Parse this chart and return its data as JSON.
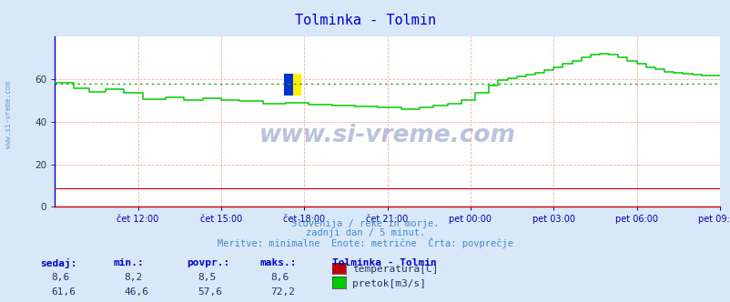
{
  "title": "Tolminka - Tolmin",
  "title_color": "#0000cc",
  "bg_color": "#d8e8f8",
  "plot_bg_color": "#ffffff",
  "avg_line_color": "#00aa00",
  "temp_color": "#cc0000",
  "flow_color": "#00cc00",
  "x_labels": [
    "čet 12:00",
    "čet 15:00",
    "čet 18:00",
    "čet 21:00",
    "pet 00:00",
    "pet 03:00",
    "pet 06:00",
    "pet 09:00"
  ],
  "x_label_color": "#0000aa",
  "y_ticks": [
    0,
    20,
    40,
    60
  ],
  "y_lim": [
    0,
    80
  ],
  "x_lim": [
    0,
    288
  ],
  "avg_flow": 57.6,
  "footer_lines": [
    "Slovenija / reke in morje.",
    "zadnji dan / 5 minut.",
    "Meritve: minimalne  Enote: metrične  Črta: povprečje"
  ],
  "footer_color": "#4488cc",
  "table_label_color": "#0000cc",
  "table_headers": [
    "sedaj:",
    "min.:",
    "povpr.:",
    "maks.:"
  ],
  "table_data": [
    [
      "8,6",
      "8,2",
      "8,5",
      "8,6"
    ],
    [
      "61,6",
      "46,6",
      "57,6",
      "72,2"
    ]
  ],
  "legend_station": "Tolminka - Tolmin",
  "legend_entries": [
    "temperatura[C]",
    "pretok[m3/s]"
  ],
  "watermark": "www.si-vreme.com",
  "watermark_color": "#1a3a8a",
  "watermark_alpha": 0.3,
  "sidebar_watermark": "www.si-vreme.com",
  "sidebar_color": "#3366aa",
  "sidebar_alpha": 0.6
}
